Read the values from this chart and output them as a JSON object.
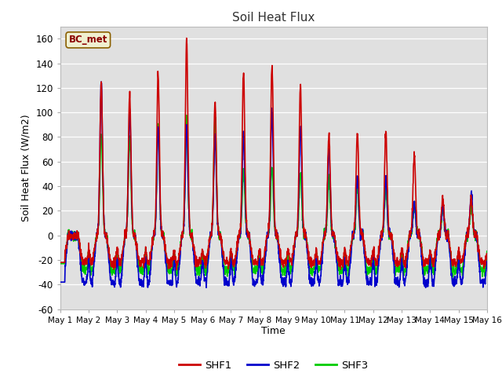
{
  "title": "Soil Heat Flux",
  "xlabel": "Time",
  "ylabel": "Soil Heat Flux (W/m2)",
  "ylim": [
    -60,
    170
  ],
  "yticks": [
    -60,
    -40,
    -20,
    0,
    20,
    40,
    60,
    80,
    100,
    120,
    140,
    160
  ],
  "colors": {
    "SHF1": "#cc0000",
    "SHF2": "#0000cc",
    "SHF3": "#00cc00"
  },
  "legend_label": "BC_met",
  "plot_bg": "#e0e0e0",
  "line_width": 1.2,
  "shf1_peaks": [
    0,
    125,
    115,
    131,
    158,
    108,
    132,
    139,
    122,
    83,
    84,
    84,
    67,
    30,
    30
  ],
  "shf2_peaks": [
    0,
    125,
    104,
    87,
    89,
    81,
    81,
    100,
    88,
    70,
    49,
    47,
    27,
    25,
    34
  ],
  "shf3_peaks": [
    0,
    82,
    80,
    90,
    95,
    97,
    52,
    56,
    52,
    46,
    40,
    39,
    27,
    21,
    25
  ],
  "shf1_trough": -22,
  "shf2_trough": -38,
  "shf3_trough": -28,
  "n_days": 15,
  "pts_per_day": 144
}
